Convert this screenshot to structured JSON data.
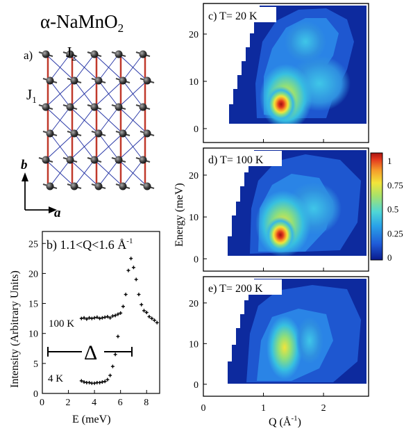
{
  "title": {
    "main": "α-NaMnO",
    "sub": "2"
  },
  "lattice": {
    "panel_label": "a)",
    "j1": "J",
    "j1_sub": "1",
    "j2": "J",
    "j2_sub": "2",
    "axis_b": "b",
    "axis_a": "a",
    "colors": {
      "j1_bond": "#c0392b",
      "j2_bond": "#2b3aa8",
      "atom": "#3a3a3a"
    }
  },
  "intensity_plot": {
    "panel_label": "b) 1.1<Q<1.6 Å",
    "panel_label_sup": "-1",
    "xlabel": "E (meV)",
    "ylabel": "Intensity (Arbitrary Units)",
    "xticks": [
      "0",
      "2",
      "4",
      "6",
      "8"
    ],
    "yticks": [
      "0",
      "5",
      "10",
      "15",
      "20",
      "25"
    ],
    "label_100k": "100 K",
    "label_4k": "4 K",
    "delta_symbol": "Δ"
  },
  "energy_maps": {
    "panels": [
      {
        "label": "c) T= 20 K"
      },
      {
        "label": "d) T= 100 K"
      },
      {
        "label": "e) T= 200 K"
      }
    ],
    "ylabel": "Energy (meV)",
    "yticks": [
      "0",
      "10",
      "20"
    ],
    "xticks": [
      "0",
      "1",
      "2"
    ],
    "xlabel": "Q (Å",
    "xlabel_sup": "-1",
    "xlabel_end": ")",
    "colorbar_ticks": [
      "0",
      "0.25",
      "0.5",
      "0.75",
      "1"
    ]
  },
  "chart_data": [
    {
      "type": "scatter",
      "series": [
        {
          "name": "100 K",
          "x": [
            3.0,
            3.2,
            3.4,
            3.6,
            3.8,
            4.0,
            4.2,
            4.4,
            4.6,
            4.8,
            5.0,
            5.2,
            5.4,
            5.6,
            5.8,
            6.0,
            6.2,
            6.4,
            6.6,
            6.8,
            7.0,
            7.2,
            7.4,
            7.6,
            7.8,
            8.0,
            8.2,
            8.4,
            8.6,
            8.8
          ],
          "y": [
            12.5,
            12.6,
            12.4,
            12.6,
            12.5,
            12.6,
            12.7,
            12.5,
            12.6,
            12.7,
            12.8,
            12.6,
            12.9,
            13.0,
            13.2,
            13.4,
            14.5,
            16.5,
            20.5,
            22.5,
            21.0,
            19.0,
            16.5,
            14.8,
            13.8,
            13.5,
            12.8,
            12.5,
            12.2,
            11.8
          ]
        },
        {
          "name": "4 K",
          "x": [
            3.0,
            3.2,
            3.4,
            3.6,
            3.8,
            4.0,
            4.2,
            4.4,
            4.6,
            4.8,
            5.0,
            5.2,
            5.4,
            5.6,
            5.8
          ],
          "y": [
            2.1,
            1.9,
            1.8,
            1.8,
            1.7,
            1.7,
            1.8,
            1.8,
            1.9,
            2.0,
            2.3,
            3.0,
            4.5,
            6.5,
            9.5
          ]
        }
      ],
      "xlim": [
        0,
        9
      ],
      "ylim": [
        0,
        27
      ]
    },
    {
      "type": "heatmap",
      "panels": [
        "T= 20 K",
        "T= 100 K",
        "T= 200 K"
      ],
      "peaks": [
        {
          "q": 1.25,
          "e": 6.5,
          "intensity": 1.0
        },
        {
          "q": 1.27,
          "e": 6.5,
          "intensity": 1.0
        },
        {
          "q": 1.3,
          "e": 9.0,
          "intensity": 0.6
        }
      ],
      "xlim": [
        0,
        2.75
      ],
      "ylim": [
        0,
        25
      ],
      "colorbar_range": [
        0,
        1
      ]
    }
  ]
}
